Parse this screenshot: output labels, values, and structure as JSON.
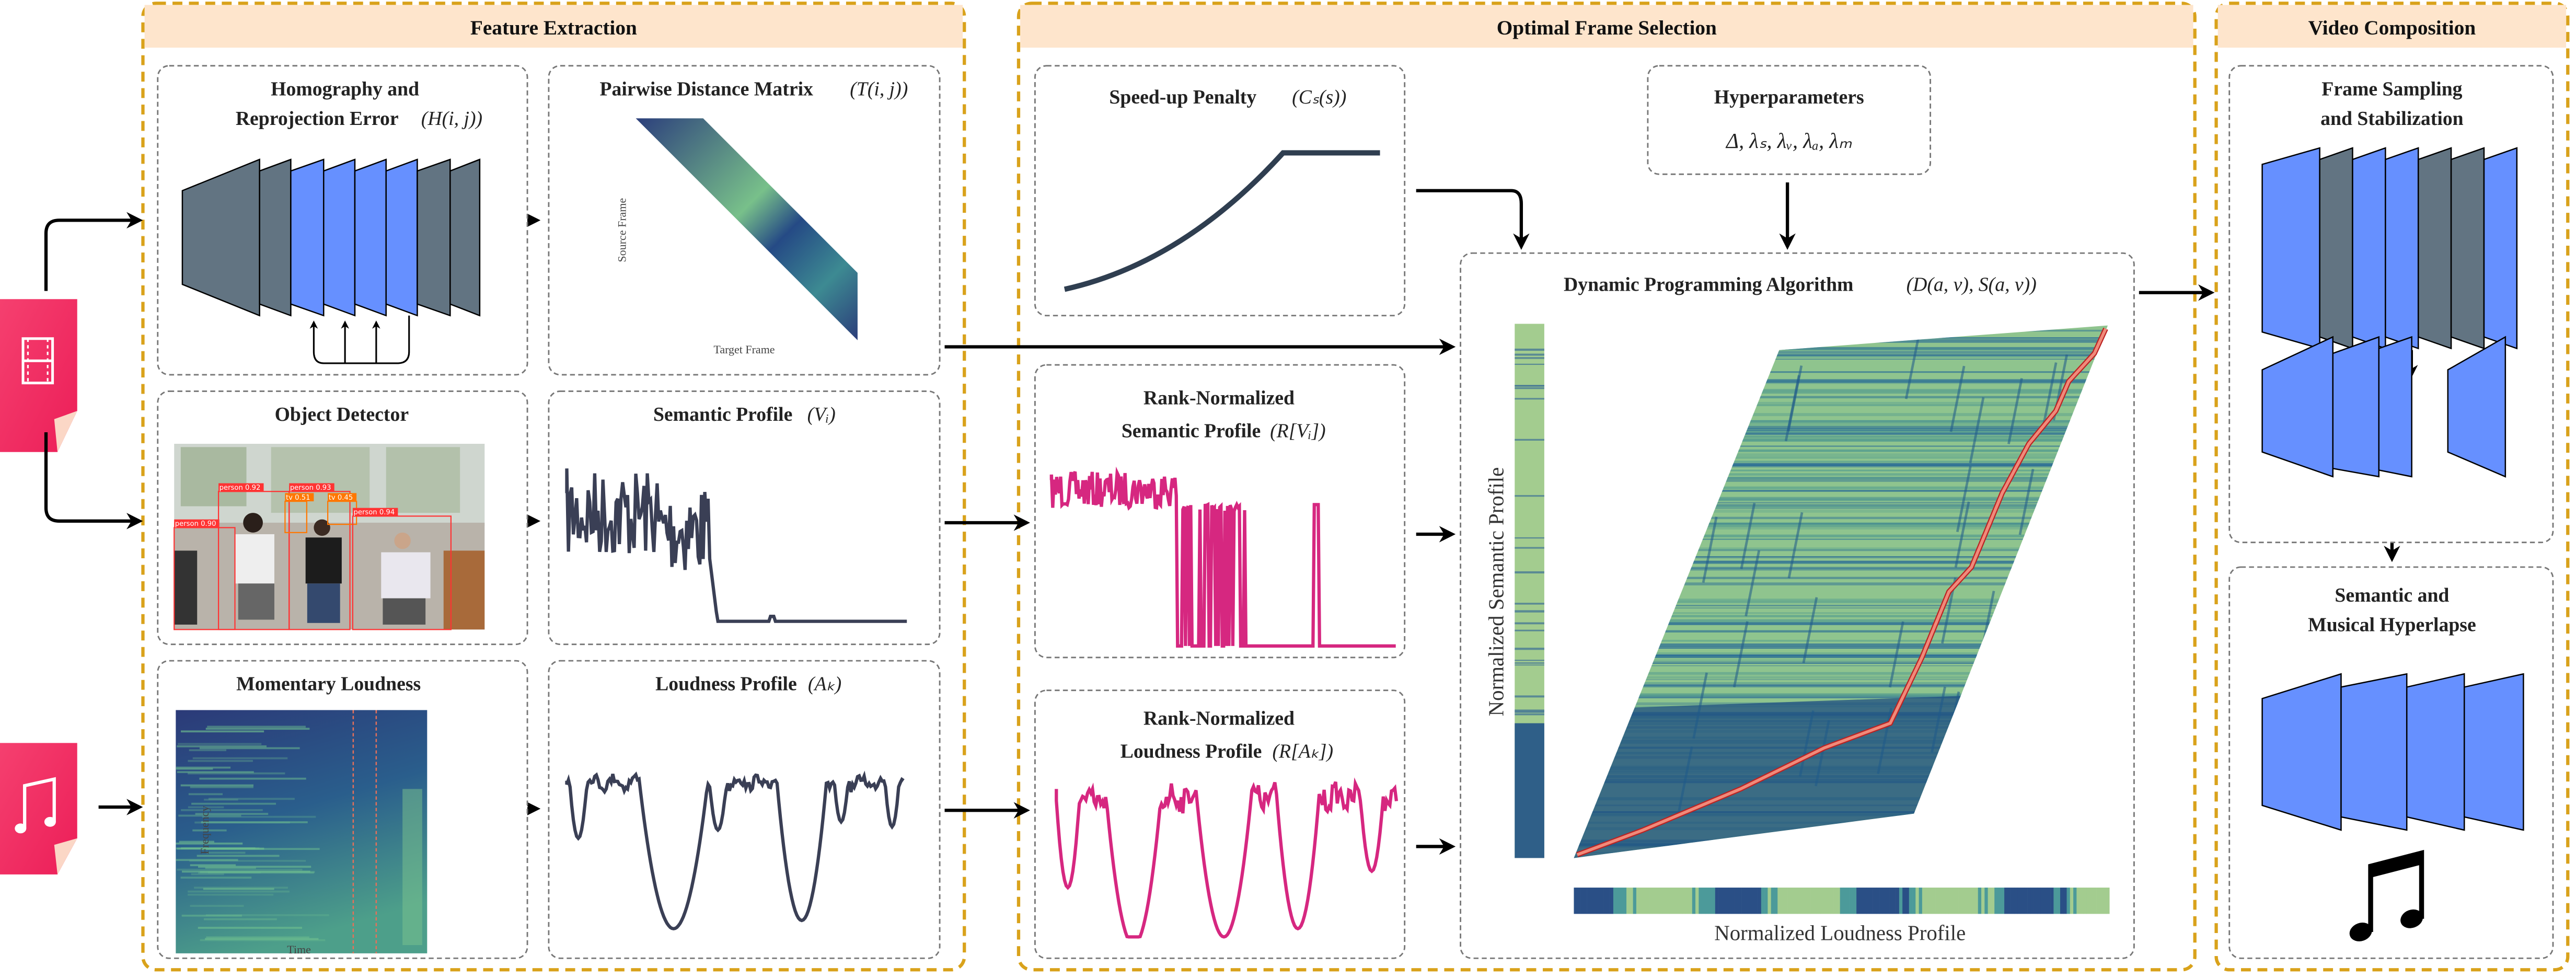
{
  "panels": {
    "feature_extraction": "Feature Extraction",
    "optimal_frame_selection": "Optimal Frame Selection",
    "video_composition": "Video Composition"
  },
  "boxes": {
    "homography": {
      "line1": "Homography and",
      "line2": "Reprojection Error",
      "math": "(H(i, j))"
    },
    "pairwise": {
      "title": "Pairwise Distance Matrix",
      "math": "(T(i, j))",
      "ylabel": "Source Frame",
      "xlabel": "Target Frame"
    },
    "object_detector": {
      "title": "Object Detector",
      "detections": [
        "person 0.90",
        "person 0.92",
        "person 0.93",
        "tv 0.51",
        "tv 0.45",
        "person 0.94"
      ]
    },
    "semantic_profile": {
      "title": "Semantic Profile",
      "math": "(Vᵢ)"
    },
    "momentary_loudness": {
      "title": "Momentary Loudness",
      "ylabel": "Frequency",
      "xlabel": "Time"
    },
    "loudness_profile": {
      "title": "Loudness Profile",
      "math": "(Aₖ)"
    },
    "speedup_penalty": {
      "title": "Speed-up Penalty",
      "math": "(Cₛ(s))"
    },
    "hyperparameters": {
      "title": "Hyperparameters",
      "math": "Δ, λₛ, λᵥ, λₐ, λₘ"
    },
    "rank_semantic": {
      "line1": "Rank-Normalized",
      "line2": "Semantic Profile",
      "math": "(R[Vᵢ])"
    },
    "rank_loudness": {
      "line1": "Rank-Normalized",
      "line2": "Loudness Profile",
      "math": "(R[Aₖ])"
    },
    "dynamic_programming": {
      "title": "Dynamic Programming Algorithm",
      "math": "(D(a, v), S(a, v))",
      "ylabel": "Normalized Semantic Profile",
      "xlabel": "Normalized Loudness Profile"
    },
    "frame_sampling": {
      "line1": "Frame Sampling",
      "line2": "and Stabilization"
    },
    "hyperlapse": {
      "line1": "Semantic and",
      "line2": "Musical Hyperlapse"
    }
  },
  "icons": {
    "video_input": "film-file-icon",
    "audio_input": "music-file-icon",
    "output_music": "music-note-icon"
  },
  "colors": {
    "panel_border": "#D9A21B",
    "panel_header": "#FEE5CC",
    "layer_gray": "#627482",
    "layer_blue": "#6690FF",
    "profile_dark": "#3A3F55",
    "profile_pink": "#D62780",
    "path_red": "#E8736A",
    "icon_pink": "#F0245E"
  }
}
